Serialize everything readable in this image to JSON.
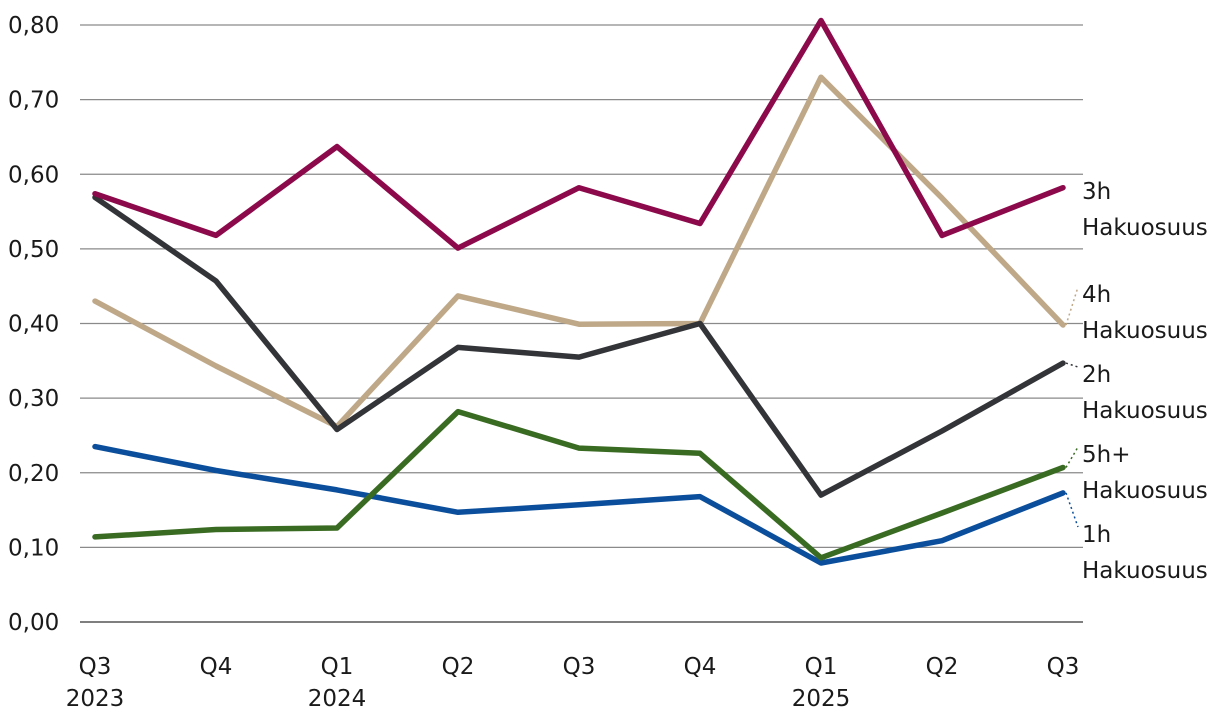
{
  "chart_data": {
    "type": "line",
    "title": "",
    "xlabel": "",
    "ylabel": "",
    "ylim": [
      0,
      0.8
    ],
    "yticks": [
      "0,00",
      "0,10",
      "0,20",
      "0,30",
      "0,40",
      "0,50",
      "0,60",
      "0,70",
      "0,80"
    ],
    "categories": [
      {
        "quarter": "Q3",
        "year": "2023"
      },
      {
        "quarter": "Q4",
        "year": ""
      },
      {
        "quarter": "Q1",
        "year": "2024"
      },
      {
        "quarter": "Q2",
        "year": ""
      },
      {
        "quarter": "Q3",
        "year": ""
      },
      {
        "quarter": "Q4",
        "year": ""
      },
      {
        "quarter": "Q1",
        "year": "2025"
      },
      {
        "quarter": "Q2",
        "year": ""
      },
      {
        "quarter": "Q3",
        "year": ""
      }
    ],
    "series": [
      {
        "name": "1h Hakuosuus",
        "label_line1": "1h",
        "label_line2": "Hakuosuus",
        "color": "#0b4f9c",
        "values": [
          0.235,
          0.203,
          0.177,
          0.147,
          0.157,
          0.168,
          0.079,
          0.109,
          0.173
        ]
      },
      {
        "name": "5h+ Hakuosuus",
        "label_line1": "5h+",
        "label_line2": "Hakuosuus",
        "color": "#3a6b22",
        "values": [
          0.114,
          0.124,
          0.126,
          0.282,
          0.233,
          0.226,
          0.086,
          0.146,
          0.207
        ]
      },
      {
        "name": "4h Hakuosuus",
        "label_line1": "4h",
        "label_line2": "Hakuosuus",
        "color": "#bfa888",
        "values": [
          0.43,
          0.343,
          0.262,
          0.437,
          0.399,
          0.4,
          0.73,
          0.568,
          0.398
        ]
      },
      {
        "name": "2h Hakuosuus",
        "label_line1": "2h",
        "label_line2": "Hakuosuus",
        "color": "#323438",
        "values": [
          0.569,
          0.457,
          0.258,
          0.368,
          0.355,
          0.4,
          0.17,
          0.256,
          0.347
        ]
      },
      {
        "name": "3h Hakuosuus",
        "label_line1": "3h",
        "label_line2": "Hakuosuus",
        "color": "#8c0a4b",
        "values": [
          0.574,
          0.518,
          0.637,
          0.501,
          0.582,
          0.534,
          0.806,
          0.518,
          0.582
        ]
      }
    ]
  }
}
